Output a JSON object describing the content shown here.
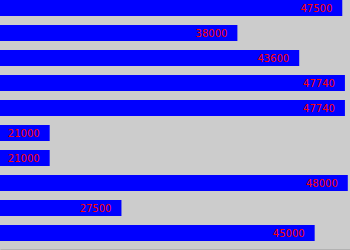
{
  "chart_data": {
    "type": "bar",
    "orientation": "horizontal",
    "categories": [
      null,
      null,
      null,
      null,
      null,
      null,
      null,
      null,
      null,
      null
    ],
    "values": [
      47500,
      38000,
      43600,
      47740,
      47740,
      21000,
      21000,
      48000,
      27500,
      45000
    ],
    "color": "#0000ff",
    "xlim": [
      16500,
      48200
    ],
    "data_labels": true,
    "tick_labels": false,
    "grid": false
  }
}
